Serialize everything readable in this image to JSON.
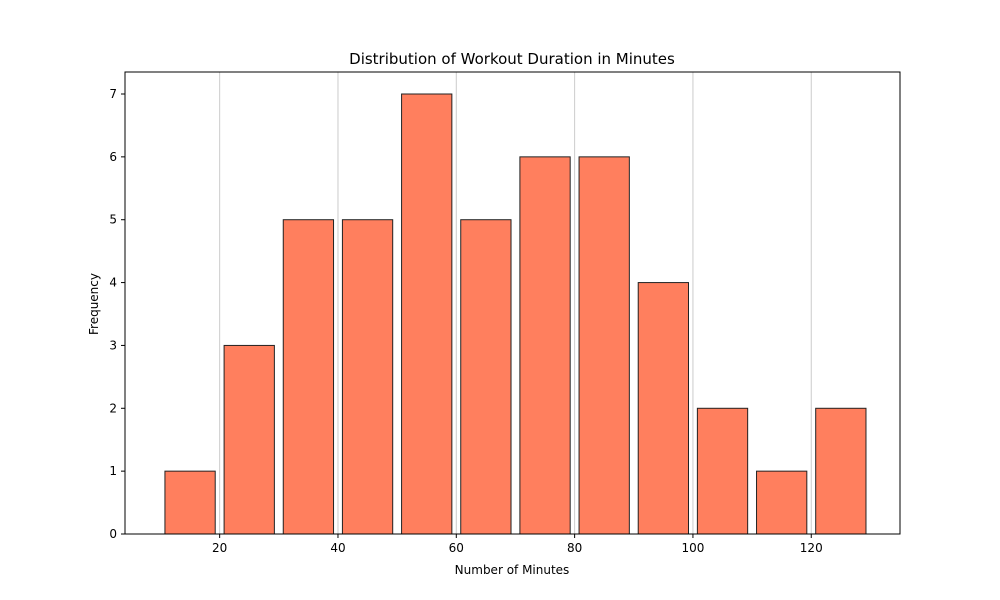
{
  "chart_data": {
    "type": "bar",
    "title": "Distribution of Workout Duration in Minutes",
    "xlabel": "Number of Minutes",
    "ylabel": "Frequency",
    "bins": [
      {
        "start": 10,
        "end": 20,
        "count": 1
      },
      {
        "start": 20,
        "end": 30,
        "count": 3
      },
      {
        "start": 30,
        "end": 40,
        "count": 5
      },
      {
        "start": 40,
        "end": 50,
        "count": 5
      },
      {
        "start": 50,
        "end": 60,
        "count": 7
      },
      {
        "start": 60,
        "end": 70,
        "count": 5
      },
      {
        "start": 70,
        "end": 80,
        "count": 6
      },
      {
        "start": 80,
        "end": 90,
        "count": 6
      },
      {
        "start": 90,
        "end": 100,
        "count": 4
      },
      {
        "start": 100,
        "end": 110,
        "count": 2
      },
      {
        "start": 110,
        "end": 120,
        "count": 1
      },
      {
        "start": 120,
        "end": 130,
        "count": 2
      }
    ],
    "xlim": [
      4,
      135
    ],
    "ylim": [
      0,
      7.35
    ],
    "xticks": [
      20,
      40,
      60,
      80,
      100,
      120
    ],
    "yticks": [
      0,
      1,
      2,
      3,
      4,
      5,
      6,
      7
    ],
    "grid": "x-axis vertical lines",
    "bar_color": "#ff7f5e",
    "edge_color": "#222222",
    "grid_color": "#cccccc"
  }
}
